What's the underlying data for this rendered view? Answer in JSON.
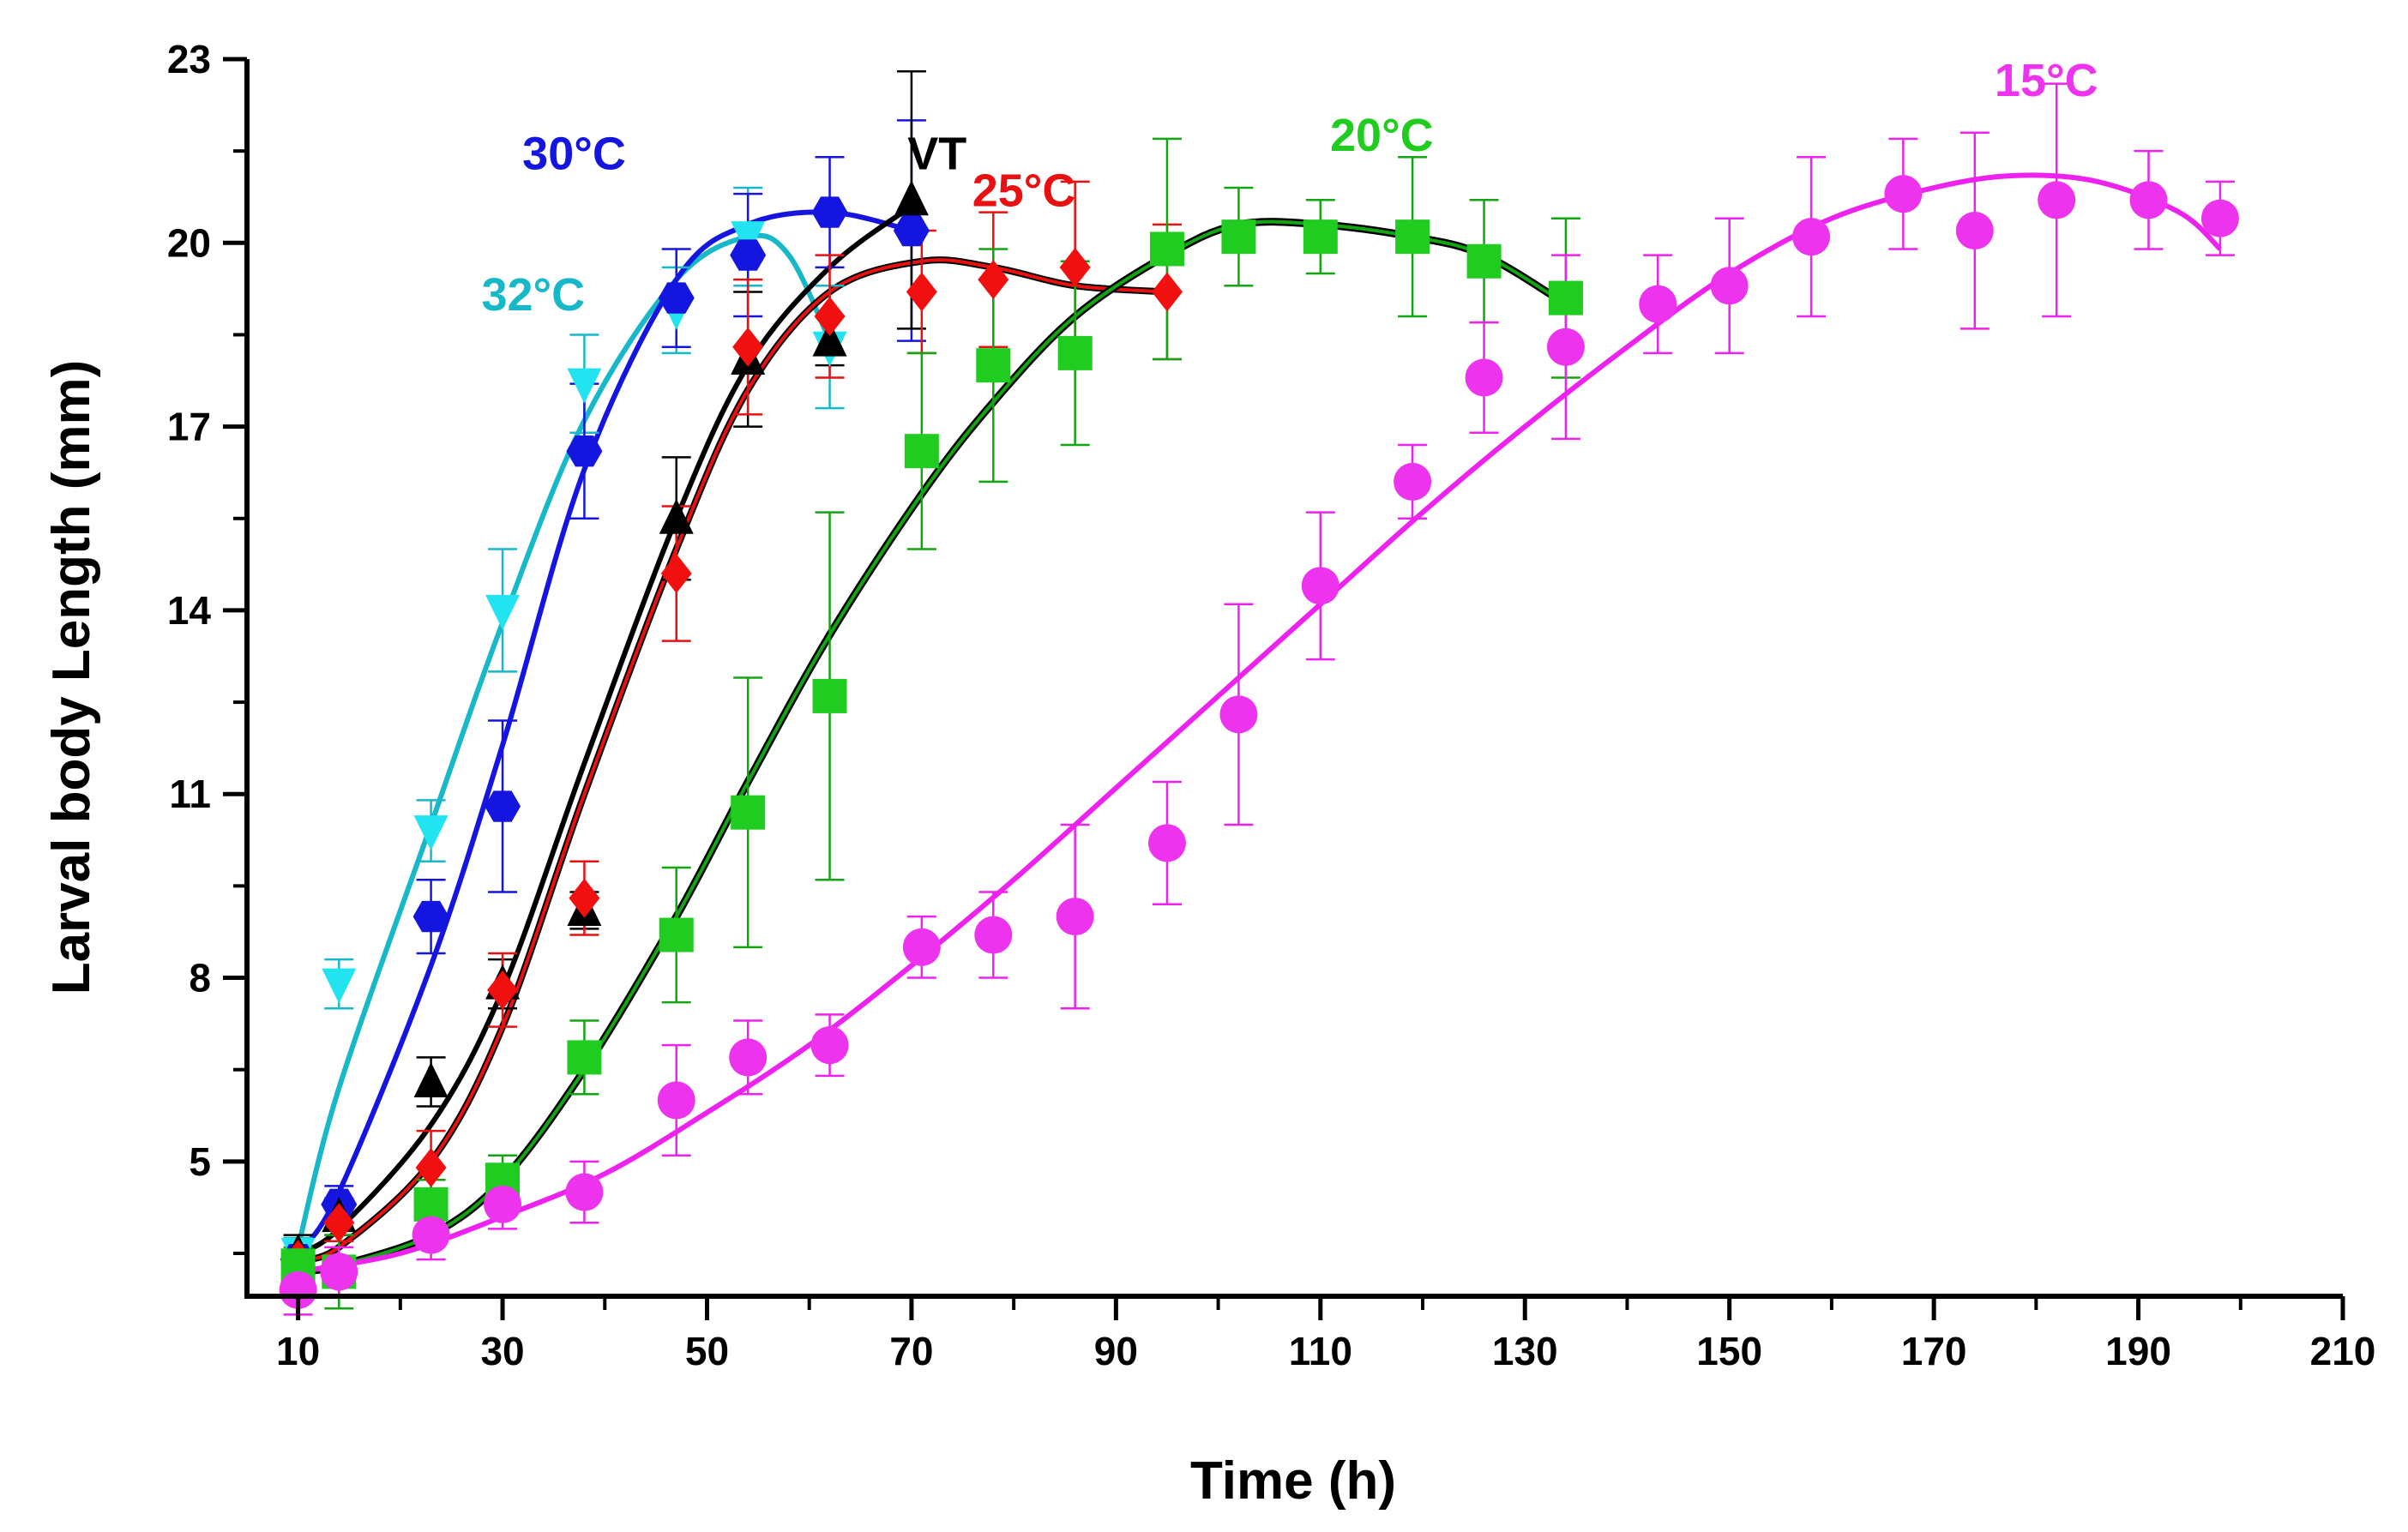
{
  "chart_data": {
    "type": "scatter",
    "title": "",
    "xlabel": "Time (h)",
    "ylabel": "Larval body Length (mm)",
    "xlim": [
      5,
      210
    ],
    "ylim": [
      2.8,
      23
    ],
    "xticks": [
      10,
      30,
      50,
      70,
      90,
      110,
      130,
      150,
      170,
      190,
      210
    ],
    "xtick_labels": [
      "10",
      "30",
      "50",
      "70",
      "90",
      "110",
      "130",
      "150",
      "170",
      "190",
      "210"
    ],
    "yticks": [
      5,
      8,
      11,
      14,
      17,
      20,
      23
    ],
    "ytick_labels": [
      "5",
      "8",
      "11",
      "14",
      "17",
      "20",
      "23"
    ],
    "grid": false,
    "series": [
      {
        "name": "32°C",
        "label": "32°C",
        "color": "#17b8c7",
        "marker_color": "#22e4f0",
        "marker": "triangle-down",
        "x": [
          10,
          14,
          23,
          30,
          38,
          47,
          54,
          62
        ],
        "y": [
          3.5,
          7.9,
          10.4,
          14.0,
          17.7,
          18.9,
          20.1,
          18.3
        ],
        "err": [
          0.25,
          0.4,
          0.5,
          1.0,
          0.8,
          0.7,
          0.8,
          1.0
        ],
        "fit_x": [
          10,
          14,
          23,
          30,
          38,
          47,
          54,
          58,
          62
        ],
        "fit_y": [
          3.6,
          6.2,
          10.5,
          13.8,
          17.1,
          19.4,
          20.1,
          19.8,
          18.4
        ]
      },
      {
        "name": "30°C",
        "label": "30°C",
        "color": "#1515e0",
        "marker_color": "#1515e0",
        "marker": "hexagon",
        "x": [
          10,
          14,
          23,
          30,
          38,
          47,
          54,
          62,
          70
        ],
        "y": [
          3.4,
          4.3,
          9.0,
          10.8,
          16.6,
          19.1,
          19.8,
          20.5,
          20.2
        ],
        "err": [
          0.3,
          0.3,
          0.6,
          1.4,
          1.1,
          0.8,
          1.0,
          0.9,
          1.8
        ],
        "fit_x": [
          10,
          14,
          23,
          30,
          38,
          47,
          54,
          62,
          70
        ],
        "fit_y": [
          3.5,
          4.5,
          8.2,
          11.8,
          16.3,
          19.4,
          20.3,
          20.5,
          20.2
        ]
      },
      {
        "name": "VT",
        "label": "VT",
        "color": "#000000",
        "marker_color": "#000000",
        "marker": "triangle-up",
        "x": [
          10,
          14,
          23,
          30,
          38,
          47,
          54,
          62,
          70
        ],
        "y": [
          3.5,
          4.1,
          6.3,
          7.9,
          9.1,
          15.5,
          18.1,
          18.4,
          20.7
        ],
        "err": [
          0.3,
          0.3,
          0.4,
          0.4,
          0.3,
          1.0,
          1.1,
          0.4,
          2.1
        ],
        "fit_x": [
          10,
          14,
          23,
          30,
          38,
          47,
          54,
          62,
          70
        ],
        "fit_y": [
          3.5,
          3.9,
          5.6,
          7.8,
          11.5,
          15.5,
          18.0,
          19.6,
          20.6
        ]
      },
      {
        "name": "25°C",
        "label": "25°C",
        "color": "#e81010",
        "marker_color": "#f01010",
        "marker": "diamond",
        "x": [
          10,
          14,
          23,
          30,
          38,
          47,
          54,
          62,
          71,
          78,
          86,
          95
        ],
        "y": [
          3.4,
          4.0,
          4.9,
          7.8,
          9.3,
          14.6,
          18.3,
          18.8,
          19.2,
          19.4,
          19.6,
          19.2
        ],
        "err": [
          0.3,
          0.3,
          0.6,
          0.6,
          0.6,
          1.1,
          1.1,
          1.0,
          1.0,
          1.1,
          1.4,
          1.1
        ],
        "fit_x": [
          10,
          14,
          23,
          30,
          38,
          47,
          54,
          62,
          71,
          78,
          86,
          95
        ],
        "fit_y": [
          3.4,
          3.6,
          5.0,
          7.2,
          11.0,
          15.0,
          17.6,
          19.2,
          19.7,
          19.6,
          19.3,
          19.2
        ]
      },
      {
        "name": "20°C",
        "label": "20°C",
        "color": "#12a512",
        "marker_color": "#1fcc1f",
        "marker": "square",
        "x": [
          10,
          14,
          23,
          30,
          38,
          47,
          54,
          62,
          71,
          78,
          86,
          95,
          102,
          110,
          119,
          126,
          134
        ],
        "y": [
          3.3,
          3.2,
          4.3,
          4.7,
          6.7,
          8.7,
          10.7,
          12.6,
          16.6,
          18.0,
          18.2,
          19.9,
          20.1,
          20.1,
          20.1,
          19.7,
          19.1
        ],
        "err": [
          0.3,
          0.6,
          0.4,
          0.4,
          0.6,
          1.1,
          2.2,
          3.0,
          1.6,
          1.9,
          1.5,
          1.8,
          0.8,
          0.6,
          1.3,
          1.0,
          1.3
        ],
        "fit_x": [
          10,
          14,
          23,
          30,
          38,
          47,
          54,
          62,
          71,
          78,
          86,
          95,
          102,
          110,
          119,
          126,
          134
        ],
        "fit_y": [
          3.2,
          3.3,
          3.8,
          4.7,
          6.5,
          9.0,
          11.2,
          13.6,
          15.9,
          17.4,
          18.8,
          19.8,
          20.3,
          20.3,
          20.1,
          19.8,
          19.0
        ]
      },
      {
        "name": "15°C",
        "label": "15°C",
        "color": "#ee22ee",
        "marker_color": "#ee33ee",
        "marker": "circle",
        "x": [
          10,
          14,
          23,
          30,
          38,
          47,
          54,
          62,
          71,
          78,
          86,
          95,
          102,
          110,
          119,
          126,
          134,
          143,
          150,
          158,
          167,
          174,
          182,
          191,
          198
        ],
        "y": [
          2.9,
          3.2,
          3.8,
          4.3,
          4.5,
          6.0,
          6.7,
          6.9,
          8.5,
          8.7,
          9.0,
          10.2,
          12.3,
          14.4,
          16.1,
          17.8,
          18.3,
          19.0,
          19.3,
          20.1,
          20.8,
          20.2,
          20.7,
          20.7,
          20.4
        ],
        "err": [
          0.4,
          0.4,
          0.4,
          0.4,
          0.5,
          0.9,
          0.6,
          0.5,
          0.5,
          0.7,
          1.5,
          1.0,
          1.8,
          1.2,
          0.6,
          0.9,
          1.5,
          0.8,
          1.1,
          1.3,
          0.9,
          1.6,
          1.9,
          0.8,
          0.6
        ],
        "fit_x": [
          10,
          20,
          30,
          40,
          50,
          60,
          70,
          80,
          90,
          100,
          110,
          120,
          130,
          140,
          150,
          160,
          170,
          178,
          186,
          194,
          198
        ],
        "fit_y": [
          3.2,
          3.5,
          4.1,
          4.8,
          5.8,
          6.9,
          8.2,
          9.6,
          11.1,
          12.6,
          14.1,
          15.6,
          17.0,
          18.3,
          19.5,
          20.4,
          20.9,
          21.1,
          21.0,
          20.5,
          19.9
        ]
      }
    ]
  }
}
